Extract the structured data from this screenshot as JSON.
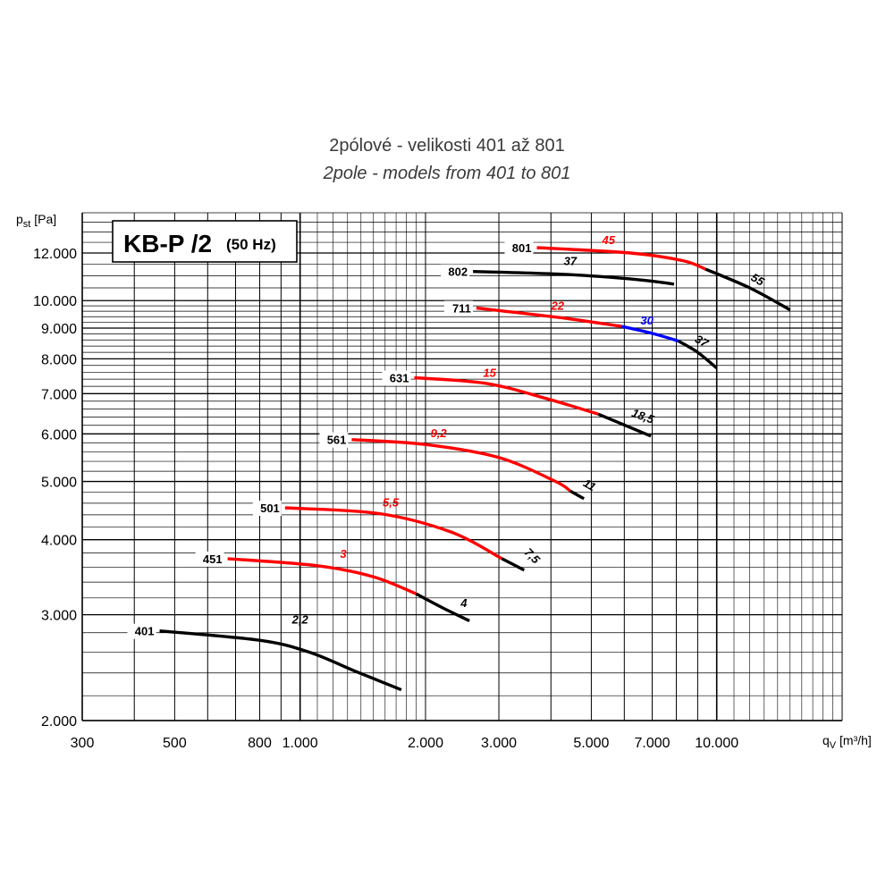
{
  "title_cz": "2pólové - velikosti 401 až 801",
  "title_en": "2pole - models from 401 to 801",
  "legend_box": {
    "main": "KB-P /2",
    "freq": "(50 Hz)"
  },
  "colors": {
    "black": "#000000",
    "red": "#ff0000",
    "blue": "#0000ff",
    "grid": "#000000"
  },
  "chart_data": {
    "type": "line",
    "x_scale": "log",
    "y_scale": "log",
    "xlim": [
      300,
      20000
    ],
    "ylim": [
      2000,
      14000
    ],
    "xlabel_main": "q",
    "xlabel_sub": "V",
    "xlabel_unit": " [m³/h]",
    "ylabel_main": "p",
    "ylabel_sub": "st",
    "ylabel_unit": " [Pa]",
    "x_ticks": [
      300,
      500,
      800,
      1000,
      2000,
      3000,
      5000,
      7000,
      10000
    ],
    "x_tick_labels": [
      "300",
      "500",
      "800",
      "1.000",
      "2.000",
      "3.000",
      "5.000",
      "7.000",
      "10.000"
    ],
    "y_ticks": [
      2000,
      3000,
      4000,
      5000,
      6000,
      7000,
      8000,
      9000,
      10000,
      12000
    ],
    "y_tick_labels": [
      "2.000",
      "3.000",
      "4.000",
      "5.000",
      "6.000",
      "7.000",
      "8.000",
      "9.000",
      "10.000",
      "12.000"
    ],
    "series": [
      {
        "name": "401",
        "segments": [
          {
            "color": "black",
            "power": "2,2",
            "points": [
              [
                460,
                2820
              ],
              [
                800,
                2720
              ],
              [
                1050,
                2600
              ],
              [
                1350,
                2420
              ],
              [
                1750,
                2250
              ]
            ]
          }
        ]
      },
      {
        "name": "451",
        "segments": [
          {
            "color": "red",
            "power": "3",
            "points": [
              [
                670,
                3720
              ],
              [
                1100,
                3620
              ],
              [
                1500,
                3470
              ],
              [
                1900,
                3250
              ]
            ]
          },
          {
            "color": "black",
            "power": "4",
            "points": [
              [
                1900,
                3250
              ],
              [
                2200,
                3080
              ],
              [
                2550,
                2930
              ]
            ]
          }
        ]
      },
      {
        "name": "501",
        "segments": [
          {
            "color": "red",
            "power": "5,5",
            "points": [
              [
                920,
                4520
              ],
              [
                1550,
                4420
              ],
              [
                2300,
                4120
              ],
              [
                3050,
                3720
              ]
            ]
          },
          {
            "color": "black",
            "power": "7,5",
            "points": [
              [
                3050,
                3720
              ],
              [
                3450,
                3560
              ]
            ]
          }
        ]
      },
      {
        "name": "561",
        "segments": [
          {
            "color": "red",
            "power": "9,2",
            "points": [
              [
                1330,
                5870
              ],
              [
                2000,
                5760
              ],
              [
                3000,
                5480
              ],
              [
                4100,
                5000
              ],
              [
                4450,
                4820
              ]
            ]
          },
          {
            "color": "black",
            "power": "11",
            "points": [
              [
                4450,
                4820
              ],
              [
                4800,
                4680
              ]
            ]
          }
        ]
      },
      {
        "name": "631",
        "segments": [
          {
            "color": "red",
            "power": "15",
            "points": [
              [
                1880,
                7440
              ],
              [
                2800,
                7280
              ],
              [
                3900,
                6870
              ],
              [
                5200,
                6470
              ]
            ]
          },
          {
            "color": "black",
            "power": "18,5",
            "points": [
              [
                5200,
                6470
              ],
              [
                6950,
                5950
              ]
            ]
          }
        ]
      },
      {
        "name": "711",
        "segments": [
          {
            "color": "red",
            "power": "22",
            "points": [
              [
                2650,
                9720
              ],
              [
                4200,
                9370
              ],
              [
                5900,
                9060
              ]
            ]
          },
          {
            "color": "blue",
            "power": "30",
            "points": [
              [
                5900,
                9060
              ],
              [
                7000,
                8820
              ],
              [
                8100,
                8560
              ]
            ]
          },
          {
            "color": "black",
            "power": "37",
            "points": [
              [
                8100,
                8560
              ],
              [
                9000,
                8200
              ],
              [
                10000,
                7720
              ]
            ]
          }
        ]
      },
      {
        "name": "801",
        "segments": [
          {
            "color": "red",
            "power": "45",
            "points": [
              [
                3700,
                12250
              ],
              [
                6200,
                12000
              ],
              [
                8300,
                11650
              ],
              [
                9400,
                11280
              ]
            ]
          },
          {
            "color": "black",
            "power": "55",
            "points": [
              [
                9400,
                11280
              ],
              [
                12000,
                10500
              ],
              [
                15000,
                9650
              ]
            ]
          }
        ]
      },
      {
        "name": "802",
        "segments": [
          {
            "color": "black",
            "power": "37",
            "points": [
              [
                2600,
                11180
              ],
              [
                4400,
                11050
              ],
              [
                6500,
                10830
              ],
              [
                7900,
                10650
              ]
            ]
          }
        ]
      }
    ]
  }
}
